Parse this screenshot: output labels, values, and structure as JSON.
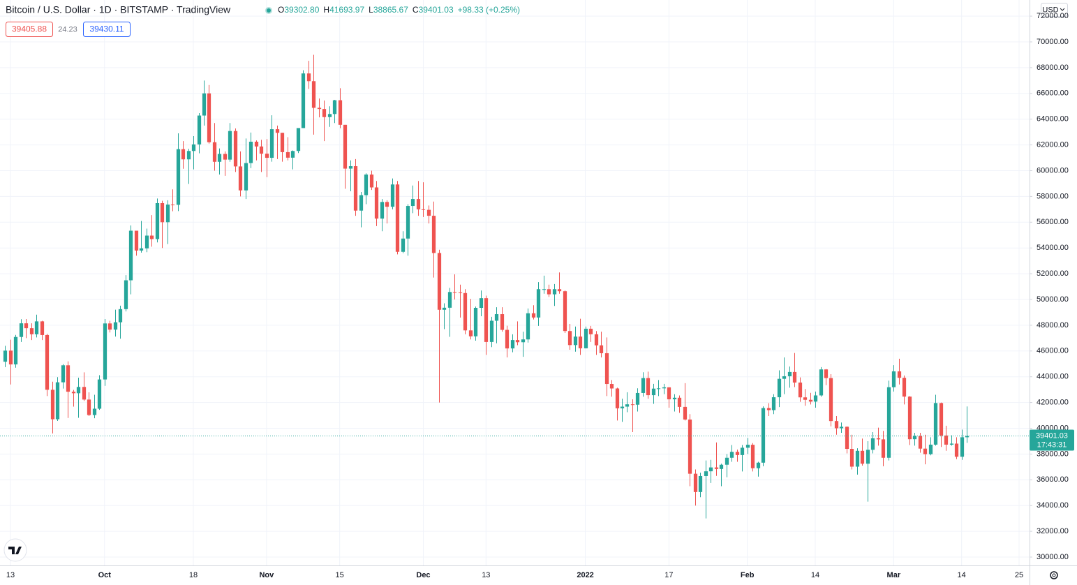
{
  "chart_data": {
    "type": "candlestick",
    "title": "Bitcoin / U.S. Dollar · 1D · BITSTAMP · TradingView",
    "legend": [
      {
        "label": "O",
        "value": "39302.80"
      },
      {
        "label": "H",
        "value": "41693.97"
      },
      {
        "label": "L",
        "value": "38865.67"
      },
      {
        "label": "C",
        "value": "39401.03"
      }
    ],
    "change": "+98.33 (+0.25%)",
    "bid": "39405.88",
    "spread": "24.23",
    "ask": "39430.11",
    "currency": "USD",
    "last_price_label": "39401.03",
    "countdown": "17:43:31",
    "up_color": "#26a69a",
    "down_color": "#ef5350",
    "grid": true,
    "x": [
      "2021-09-12",
      "2021-09-13",
      "2021-09-14",
      "2021-09-15",
      "2021-09-16",
      "2021-09-17",
      "2021-09-18",
      "2021-09-19",
      "2021-09-20",
      "2021-09-21",
      "2021-09-22",
      "2021-09-23",
      "2021-09-24",
      "2021-09-25",
      "2021-09-26",
      "2021-09-27",
      "2021-09-28",
      "2021-09-29",
      "2021-09-30",
      "2021-10-01",
      "2021-10-02",
      "2021-10-03",
      "2021-10-04",
      "2021-10-05",
      "2021-10-06",
      "2021-10-07",
      "2021-10-08",
      "2021-10-09",
      "2021-10-10",
      "2021-10-11",
      "2021-10-12",
      "2021-10-13",
      "2021-10-14",
      "2021-10-15",
      "2021-10-16",
      "2021-10-17",
      "2021-10-18",
      "2021-10-19",
      "2021-10-20",
      "2021-10-21",
      "2021-10-22",
      "2021-10-23",
      "2021-10-24",
      "2021-10-25",
      "2021-10-26",
      "2021-10-27",
      "2021-10-28",
      "2021-10-29",
      "2021-10-30",
      "2021-10-31",
      "2021-11-01",
      "2021-11-02",
      "2021-11-03",
      "2021-11-04",
      "2021-11-05",
      "2021-11-06",
      "2021-11-07",
      "2021-11-08",
      "2021-11-09",
      "2021-11-10",
      "2021-11-11",
      "2021-11-12",
      "2021-11-13",
      "2021-11-14",
      "2021-11-15",
      "2021-11-16",
      "2021-11-17",
      "2021-11-18",
      "2021-11-19",
      "2021-11-20",
      "2021-11-21",
      "2021-11-22",
      "2021-11-23",
      "2021-11-24",
      "2021-11-25",
      "2021-11-26",
      "2021-11-27",
      "2021-11-28",
      "2021-11-29",
      "2021-11-30",
      "2021-12-01",
      "2021-12-02",
      "2021-12-03",
      "2021-12-04",
      "2021-12-05",
      "2021-12-06",
      "2021-12-07",
      "2021-12-08",
      "2021-12-09",
      "2021-12-10",
      "2021-12-11",
      "2021-12-12",
      "2021-12-13",
      "2021-12-14",
      "2021-12-15",
      "2021-12-16",
      "2021-12-17",
      "2021-12-18",
      "2021-12-19",
      "2021-12-20",
      "2021-12-21",
      "2021-12-22",
      "2021-12-23",
      "2021-12-24",
      "2021-12-25",
      "2021-12-26",
      "2021-12-27",
      "2021-12-28",
      "2021-12-29",
      "2021-12-30",
      "2021-12-31",
      "2022-01-01",
      "2022-01-02",
      "2022-01-03",
      "2022-01-04",
      "2022-01-05",
      "2022-01-06",
      "2022-01-07",
      "2022-01-08",
      "2022-01-09",
      "2022-01-10",
      "2022-01-11",
      "2022-01-12",
      "2022-01-13",
      "2022-01-14",
      "2022-01-15",
      "2022-01-16",
      "2022-01-17",
      "2022-01-18",
      "2022-01-19",
      "2022-01-20",
      "2022-01-21",
      "2022-01-22",
      "2022-01-23",
      "2022-01-24",
      "2022-01-25",
      "2022-01-26",
      "2022-01-27",
      "2022-01-28",
      "2022-01-29",
      "2022-01-30",
      "2022-01-31",
      "2022-02-01",
      "2022-02-02",
      "2022-02-03",
      "2022-02-04",
      "2022-02-05",
      "2022-02-06",
      "2022-02-07",
      "2022-02-08",
      "2022-02-09",
      "2022-02-10",
      "2022-02-11",
      "2022-02-12",
      "2022-02-13",
      "2022-02-14",
      "2022-02-15",
      "2022-02-16",
      "2022-02-17",
      "2022-02-18",
      "2022-02-19",
      "2022-02-20",
      "2022-02-21",
      "2022-02-22",
      "2022-02-23",
      "2022-02-24",
      "2022-02-25",
      "2022-02-26",
      "2022-02-27",
      "2022-02-28",
      "2022-03-01",
      "2022-03-02",
      "2022-03-03",
      "2022-03-04",
      "2022-03-05",
      "2022-03-06",
      "2022-03-07",
      "2022-03-08",
      "2022-03-09",
      "2022-03-10",
      "2022-03-11",
      "2022-03-12",
      "2022-03-13",
      "2022-03-14",
      "2022-03-15"
    ],
    "open": [
      45170,
      46030,
      44960,
      47090,
      48150,
      47770,
      47300,
      48300,
      47240,
      42990,
      40700,
      43570,
      44890,
      42840,
      42720,
      43210,
      42230,
      41030,
      41520,
      43790,
      48140,
      47660,
      48230,
      49250,
      51490,
      55340,
      53800,
      53970,
      54960,
      54690,
      57480,
      56000,
      57370,
      57350,
      61670,
      60880,
      61530,
      62040,
      64280,
      66000,
      62210,
      60690,
      61300,
      60860,
      63080,
      60330,
      58470,
      60590,
      62250,
      61880,
      61320,
      61000,
      63220,
      62940,
      61440,
      61010,
      61530,
      63310,
      67550,
      66950,
      64880,
      64790,
      64160,
      64400,
      65470,
      63560,
      60160,
      60350,
      56900,
      58100,
      59700,
      58700,
      56280,
      57570,
      57200,
      58930,
      53700,
      54730,
      57260,
      57800,
      57000,
      56960,
      56500,
      53610,
      49200,
      49360,
      50580,
      50550,
      50500,
      47600,
      47140,
      49350,
      50100,
      46700,
      48350,
      48860,
      47640,
      46200,
      46850,
      46680,
      46900,
      48930,
      48600,
      50800,
      50800,
      50400,
      50800,
      50640,
      47550,
      46460,
      47120,
      46210,
      47730,
      47300,
      46440,
      45830,
      43440,
      43090,
      41550,
      41680,
      41860,
      41830,
      42740,
      43900,
      42570,
      43080,
      43100,
      43180,
      42250,
      42370,
      41660,
      40680,
      36470,
      35050,
      36290,
      36660,
      36960,
      36840,
      37170,
      37710,
      38170,
      37920,
      38490,
      38720,
      36900,
      37330,
      41570,
      41410,
      42410,
      43840,
      44040,
      44370,
      43550,
      42400,
      42210,
      42070,
      42550,
      44570,
      43900,
      40560,
      40000,
      40120,
      38400,
      37020,
      38250,
      37250,
      38330,
      39230,
      39140,
      37710,
      43190,
      44420,
      43920,
      42460,
      39150,
      39400,
      38420,
      37990,
      38730,
      41960,
      39440,
      38730,
      38810,
      37790,
      39302.8
    ],
    "high": [
      46400,
      46880,
      47250,
      48470,
      48480,
      48150,
      48820,
      48350,
      47340,
      43620,
      43970,
      44980,
      45200,
      42980,
      43930,
      44340,
      42790,
      42600,
      44120,
      48480,
      48350,
      49210,
      49520,
      51890,
      55750,
      55340,
      56100,
      55500,
      56550,
      57840,
      57660,
      57700,
      58550,
      62900,
      62300,
      61700,
      62680,
      64470,
      67000,
      66650,
      63700,
      61730,
      61500,
      63700,
      63280,
      61500,
      62500,
      62960,
      62350,
      62400,
      62450,
      64300,
      63500,
      62940,
      62600,
      61570,
      63300,
      67800,
      68530,
      69000,
      65600,
      65450,
      65000,
      65500,
      66400,
      63560,
      60800,
      60900,
      58350,
      59800,
      60000,
      59200,
      57800,
      57700,
      59400,
      59200,
      55300,
      57400,
      58850,
      59200,
      59100,
      57300,
      57600,
      53860,
      49700,
      50900,
      51950,
      51150,
      50800,
      50050,
      49450,
      50700,
      50300,
      48650,
      49400,
      49400,
      47960,
      47300,
      48300,
      47500,
      49300,
      49550,
      51350,
      51850,
      51150,
      51200,
      52100,
      50700,
      48100,
      47900,
      48500,
      47900,
      47950,
      47550,
      47500,
      47050,
      43750,
      43150,
      42300,
      42800,
      42250,
      43100,
      44350,
      44400,
      43450,
      43750,
      43450,
      43200,
      42650,
      42550,
      43500,
      41100,
      36800,
      36550,
      37500,
      37550,
      38900,
      37250,
      38000,
      38700,
      38350,
      38700,
      39250,
      38850,
      37400,
      41700,
      41950,
      42650,
      44500,
      45500,
      44800,
      45850,
      43950,
      43050,
      42750,
      42850,
      44750,
      44600,
      44200,
      40950,
      40450,
      40150,
      39500,
      38450,
      39200,
      39000,
      39700,
      40050,
      39800,
      43700,
      44900,
      45400,
      44100,
      42500,
      39650,
      39650,
      39500,
      39300,
      42600,
      42000,
      40200,
      39450,
      39300,
      39900,
      41693.97
    ],
    "low": [
      44750,
      43400,
      44700,
      46700,
      47000,
      46850,
      47050,
      46850,
      42500,
      39600,
      40570,
      43080,
      40800,
      41680,
      40810,
      42120,
      40950,
      40780,
      41430,
      43290,
      47440,
      47120,
      46960,
      49070,
      50400,
      53400,
      53640,
      53670,
      54100,
      54430,
      54000,
      54300,
      56850,
      56860,
      60150,
      58970,
      60100,
      61350,
      63500,
      62100,
      60000,
      59700,
      59600,
      60690,
      59900,
      58000,
      57800,
      60200,
      60800,
      59900,
      59500,
      60700,
      60900,
      60700,
      60800,
      60100,
      61370,
      63310,
      66350,
      62800,
      64140,
      62300,
      63400,
      63700,
      63300,
      58600,
      58400,
      56500,
      55600,
      57400,
      58500,
      55700,
      55300,
      55900,
      57000,
      53500,
      53600,
      53400,
      56700,
      56500,
      56400,
      55900,
      51700,
      42000,
      47700,
      47100,
      50000,
      48600,
      47300,
      46900,
      46800,
      48700,
      45700,
      46300,
      46600,
      47500,
      45500,
      45900,
      46450,
      45550,
      46650,
      48450,
      47950,
      50450,
      50200,
      49500,
      50450,
      47400,
      46100,
      45950,
      45700,
      46200,
      46700,
      45700,
      45500,
      42500,
      42450,
      40600,
      40500,
      41250,
      39700,
      41300,
      42450,
      42300,
      41900,
      42500,
      42650,
      41600,
      41300,
      41200,
      40600,
      35500,
      34000,
      34650,
      33000,
      35750,
      36300,
      35500,
      36200,
      37400,
      37400,
      36650,
      38000,
      36650,
      36250,
      37050,
      40950,
      41100,
      41650,
      42650,
      43150,
      43200,
      42050,
      41750,
      41850,
      41600,
      42450,
      43350,
      40150,
      39500,
      39650,
      38050,
      36800,
      36400,
      37100,
      34300,
      38050,
      38650,
      37050,
      37500,
      42850,
      43400,
      41850,
      38700,
      38650,
      38100,
      37200,
      37900,
      38650,
      38550,
      38250,
      38650,
      37600,
      37550,
      38865.67
    ],
    "close": [
      46030,
      44960,
      47090,
      48150,
      47770,
      47300,
      48300,
      47240,
      42990,
      40700,
      43570,
      44890,
      42840,
      42720,
      43210,
      42230,
      41030,
      41520,
      43790,
      48140,
      47660,
      48230,
      49250,
      51490,
      55340,
      53800,
      53970,
      54960,
      54690,
      57480,
      56000,
      57370,
      57350,
      61670,
      60880,
      61530,
      62040,
      64280,
      66000,
      62210,
      60690,
      61300,
      60860,
      63080,
      60330,
      58470,
      60590,
      62250,
      61880,
      61320,
      61000,
      63220,
      62940,
      61440,
      61010,
      61530,
      63310,
      67550,
      66950,
      64880,
      64790,
      64160,
      64400,
      65470,
      63560,
      60160,
      60350,
      56900,
      58100,
      59700,
      58700,
      56280,
      57570,
      57200,
      58930,
      53700,
      54730,
      57260,
      57800,
      57000,
      56960,
      56500,
      53610,
      49200,
      49360,
      50580,
      50550,
      50500,
      47600,
      47140,
      49350,
      50100,
      46700,
      48350,
      48860,
      47640,
      46200,
      46850,
      46680,
      46900,
      48930,
      48600,
      50800,
      50800,
      50400,
      50800,
      50640,
      47550,
      46460,
      47120,
      46210,
      47730,
      47300,
      46440,
      45830,
      43440,
      43090,
      41550,
      41680,
      41860,
      41830,
      42740,
      43900,
      42570,
      43080,
      43100,
      43180,
      42250,
      42370,
      41660,
      40680,
      36470,
      35050,
      36290,
      36660,
      36960,
      36840,
      37170,
      37710,
      38170,
      37920,
      38490,
      38720,
      36900,
      37330,
      41570,
      41410,
      42410,
      43840,
      44040,
      44370,
      43550,
      42400,
      42210,
      42070,
      42550,
      44570,
      43900,
      40560,
      40000,
      40120,
      38400,
      37020,
      38250,
      37250,
      38330,
      39230,
      39140,
      37710,
      43190,
      44420,
      43920,
      42460,
      39150,
      39400,
      38420,
      37990,
      38730,
      41960,
      39440,
      38730,
      38810,
      37790,
      39302.7,
      39401.03
    ],
    "xlim": [
      "2021-09-11",
      "2022-03-27"
    ],
    "xticks": [
      {
        "value": "2021-09-13",
        "label": "13"
      },
      {
        "value": "2021-10-01",
        "label": "Oct"
      },
      {
        "value": "2021-10-18",
        "label": "18"
      },
      {
        "value": "2021-11-01",
        "label": "Nov"
      },
      {
        "value": "2021-11-15",
        "label": "15"
      },
      {
        "value": "2021-12-01",
        "label": "Dec"
      },
      {
        "value": "2021-12-13",
        "label": "13"
      },
      {
        "value": "2022-01-01",
        "label": "2022"
      },
      {
        "value": "2022-01-17",
        "label": "17"
      },
      {
        "value": "2022-02-01",
        "label": "Feb"
      },
      {
        "value": "2022-02-14",
        "label": "14"
      },
      {
        "value": "2022-03-01",
        "label": "Mar"
      },
      {
        "value": "2022-03-14",
        "label": "14"
      },
      {
        "value": "2022-03-25",
        "label": "25"
      }
    ],
    "ylim": [
      29350,
      73252
    ],
    "yticks": [
      {
        "value": 30000,
        "label": "30000.00"
      },
      {
        "value": 32000,
        "label": "32000.00"
      },
      {
        "value": 34000,
        "label": "34000.00"
      },
      {
        "value": 36000,
        "label": "36000.00"
      },
      {
        "value": 38000,
        "label": "38000.00"
      },
      {
        "value": 40000,
        "label": "40000.00"
      },
      {
        "value": 42000,
        "label": "42000.00"
      },
      {
        "value": 44000,
        "label": "44000.00"
      },
      {
        "value": 46000,
        "label": "46000.00"
      },
      {
        "value": 48000,
        "label": "48000.00"
      },
      {
        "value": 50000,
        "label": "50000.00"
      },
      {
        "value": 52000,
        "label": "52000.00"
      },
      {
        "value": 54000,
        "label": "54000.00"
      },
      {
        "value": 56000,
        "label": "56000.00"
      },
      {
        "value": 58000,
        "label": "58000.00"
      },
      {
        "value": 60000,
        "label": "60000.00"
      },
      {
        "value": 62000,
        "label": "62000.00"
      },
      {
        "value": 64000,
        "label": "64000.00"
      },
      {
        "value": 66000,
        "label": "66000.00"
      },
      {
        "value": 68000,
        "label": "68000.00"
      },
      {
        "value": 70000,
        "label": "70000.00"
      },
      {
        "value": 72000,
        "label": "72000.00"
      }
    ]
  }
}
